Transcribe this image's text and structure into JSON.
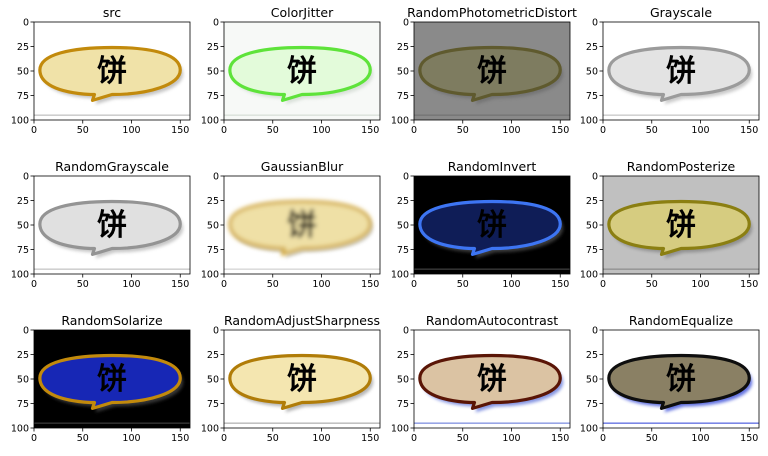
{
  "figure": {
    "rows": 3,
    "cols": 4
  },
  "text_label": "饼",
  "chart_data": [
    {
      "type": "image",
      "title": "src",
      "xticks": [
        0,
        50,
        100,
        150
      ],
      "yticks": [
        0,
        25,
        50,
        75,
        100
      ],
      "xlim": [
        0,
        160
      ],
      "ylim": [
        100,
        0
      ],
      "colors": {
        "bg": "#ffffff",
        "fill": "#f0e2a8",
        "stroke": "#c28a0c",
        "text": "#d39a52",
        "shadow": "#b0b0b0"
      }
    },
    {
      "type": "image",
      "title": "ColorJitter",
      "xticks": [
        0,
        50,
        100,
        150
      ],
      "yticks": [
        0,
        25,
        50,
        75,
        100
      ],
      "xlim": [
        0,
        160
      ],
      "ylim": [
        100,
        0
      ],
      "colors": {
        "bg": "#f7f9f7",
        "fill": "#e3fbda",
        "stroke": "#5ee33a",
        "text": "#9fe87c",
        "shadow": "#cfd8cf"
      }
    },
    {
      "type": "image",
      "title": "RandomPhotometricDistort",
      "xticks": [
        0,
        50,
        100,
        150
      ],
      "yticks": [
        0,
        25,
        50,
        75,
        100
      ],
      "xlim": [
        0,
        160
      ],
      "ylim": [
        100,
        0
      ],
      "colors": {
        "bg": "#8a8a8a",
        "fill": "#7e7c60",
        "stroke": "#5f5a2e",
        "text": "#6e6b44",
        "shadow": "#6d6d6d"
      }
    },
    {
      "type": "image",
      "title": "Grayscale",
      "xticks": [
        0,
        50,
        100,
        150
      ],
      "yticks": [
        0,
        25,
        50,
        75,
        100
      ],
      "xlim": [
        0,
        160
      ],
      "ylim": [
        100,
        0
      ],
      "colors": {
        "bg": "#ffffff",
        "fill": "#e3e3e3",
        "stroke": "#9b9b9b",
        "text": "#c1c1c1",
        "shadow": "#b8b8b8"
      }
    },
    {
      "type": "image",
      "title": "RandomGrayscale",
      "xticks": [
        0,
        50,
        100,
        150
      ],
      "yticks": [
        0,
        25,
        50,
        75,
        100
      ],
      "xlim": [
        0,
        160
      ],
      "ylim": [
        100,
        0
      ],
      "colors": {
        "bg": "#ffffff",
        "fill": "#e0e0e0",
        "stroke": "#949494",
        "text": "#bdbdbd",
        "shadow": "#b4b4b4"
      }
    },
    {
      "type": "image",
      "title": "GaussianBlur",
      "xticks": [
        0,
        50,
        100,
        150
      ],
      "yticks": [
        0,
        25,
        50,
        75,
        100
      ],
      "xlim": [
        0,
        160
      ],
      "ylim": [
        100,
        0
      ],
      "colors": {
        "bg": "#ffffff",
        "fill": "#efe0a6",
        "stroke": "#d2a93c",
        "text": "#dcb877",
        "shadow": "#c8c8c8"
      }
    },
    {
      "type": "image",
      "title": "RandomInvert",
      "xticks": [
        0,
        50,
        100,
        150
      ],
      "yticks": [
        0,
        25,
        50,
        75,
        100
      ],
      "xlim": [
        0,
        160
      ],
      "ylim": [
        100,
        0
      ],
      "colors": {
        "bg": "#000000",
        "fill": "#0f1d57",
        "stroke": "#3d75f3",
        "text": "#2c65ad",
        "shadow": "#4f4f4f"
      }
    },
    {
      "type": "image",
      "title": "RandomPosterize",
      "xticks": [
        0,
        50,
        100,
        150
      ],
      "yticks": [
        0,
        25,
        50,
        75,
        100
      ],
      "xlim": [
        0,
        160
      ],
      "ylim": [
        100,
        0
      ],
      "colors": {
        "bg": "#c0c0c0",
        "fill": "#d6cc80",
        "stroke": "#8b7f12",
        "text": "#c0804c",
        "shadow": "#808080"
      }
    },
    {
      "type": "image",
      "title": "RandomSolarize",
      "xticks": [
        0,
        50,
        100,
        150
      ],
      "yticks": [
        0,
        25,
        50,
        75,
        100
      ],
      "xlim": [
        0,
        160
      ],
      "ylim": [
        100,
        0
      ],
      "colors": {
        "bg": "#000000",
        "fill": "#1727b5",
        "stroke": "#c28a0c",
        "text": "#6c9566",
        "shadow": "#4a4a4a"
      }
    },
    {
      "type": "image",
      "title": "RandomAdjustSharpness",
      "xticks": [
        0,
        50,
        100,
        150
      ],
      "yticks": [
        0,
        25,
        50,
        75,
        100
      ],
      "xlim": [
        0,
        160
      ],
      "ylim": [
        100,
        0
      ],
      "colors": {
        "bg": "#ffffff",
        "fill": "#f4e6b0",
        "stroke": "#b07c08",
        "text": "#c98a48",
        "shadow": "#9c9c9c"
      }
    },
    {
      "type": "image",
      "title": "RandomAutocontrast",
      "xticks": [
        0,
        50,
        100,
        150
      ],
      "yticks": [
        0,
        25,
        50,
        75,
        100
      ],
      "xlim": [
        0,
        160
      ],
      "ylim": [
        100,
        0
      ],
      "colors": {
        "bg": "#ffffff",
        "fill": "#dbc3a3",
        "stroke": "#5a1506",
        "text": "#8a3a7a",
        "shadow": "#5a6fd8"
      }
    },
    {
      "type": "image",
      "title": "RandomEqualize",
      "xticks": [
        0,
        50,
        100,
        150
      ],
      "yticks": [
        0,
        25,
        50,
        75,
        100
      ],
      "xlim": [
        0,
        160
      ],
      "ylim": [
        100,
        0
      ],
      "colors": {
        "bg": "#ffffff",
        "fill": "#8a8064",
        "stroke": "#0e0e0e",
        "text": "#2a0f1a",
        "shadow": "#2b3fd6"
      }
    }
  ]
}
